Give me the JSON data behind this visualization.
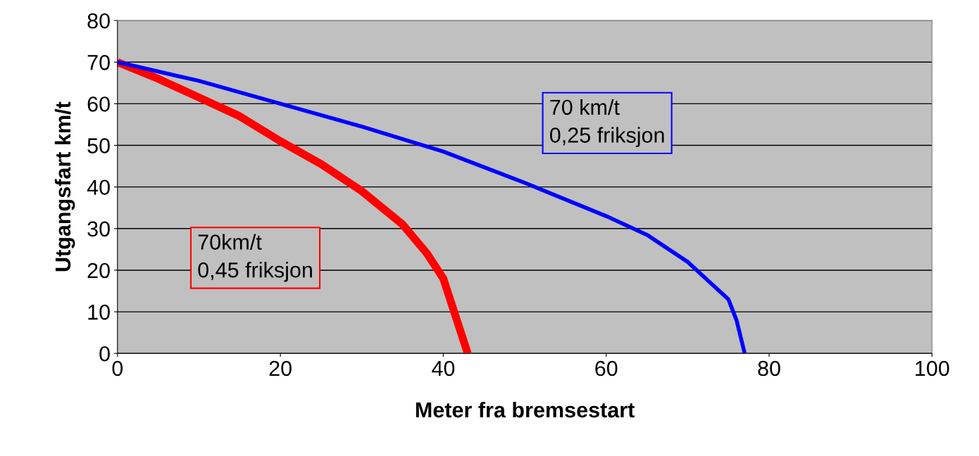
{
  "chart_data": {
    "type": "line",
    "xlabel": "Meter fra bremsestart",
    "ylabel": "Utgangsfart km/t",
    "xlim": [
      0,
      100
    ],
    "xticks": [
      0,
      20,
      40,
      60,
      80,
      100
    ],
    "ylim": [
      0,
      80
    ],
    "yticks": [
      0,
      10,
      20,
      30,
      40,
      50,
      60,
      70,
      80
    ],
    "grid": "y",
    "legend": false,
    "marker": "none",
    "line_style": "solid",
    "series": [
      {
        "name": "70km/t\n0,45 friksjon",
        "color": "#ff0000",
        "x": [
          0,
          5,
          10,
          15,
          20,
          25,
          30,
          35,
          38,
          40,
          41,
          42,
          43
        ],
        "values": [
          70,
          66,
          61.5,
          57,
          51,
          45.5,
          39,
          31,
          24,
          18,
          12,
          6,
          0
        ]
      },
      {
        "name": "70 km/t\n0,25 friksjon",
        "color": "#0000ff",
        "x": [
          0,
          10,
          20,
          30,
          40,
          50,
          60,
          65,
          70,
          75,
          76,
          77
        ],
        "values": [
          70,
          65.5,
          60,
          54.5,
          48.5,
          41,
          33,
          28.5,
          22,
          13,
          8,
          0
        ]
      }
    ]
  }
}
